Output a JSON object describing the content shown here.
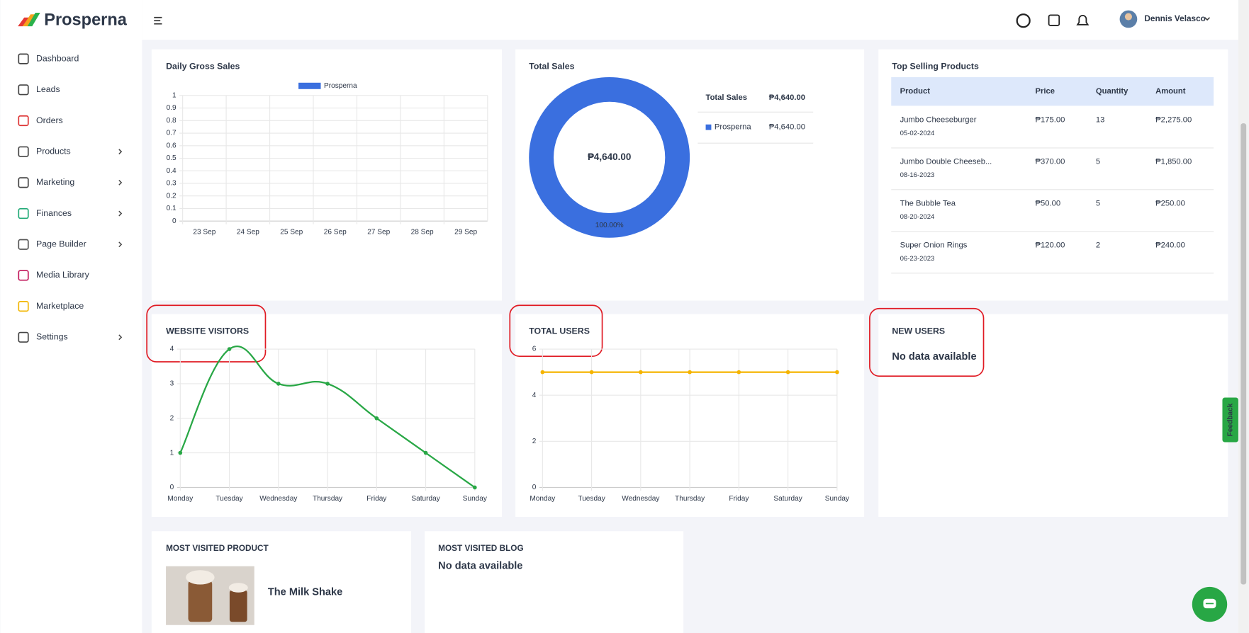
{
  "brand": "Prosperna",
  "sidebar": {
    "items": [
      {
        "label": "Dashboard",
        "has_submenu": false
      },
      {
        "label": "Leads",
        "has_submenu": false
      },
      {
        "label": "Orders",
        "has_submenu": false
      },
      {
        "label": "Products",
        "has_submenu": true
      },
      {
        "label": "Marketing",
        "has_submenu": true
      },
      {
        "label": "Finances",
        "has_submenu": true
      },
      {
        "label": "Page Builder",
        "has_submenu": true
      },
      {
        "label": "Media Library",
        "has_submenu": false
      },
      {
        "label": "Marketplace",
        "has_submenu": false
      },
      {
        "label": "Settings",
        "has_submenu": true
      }
    ]
  },
  "header": {
    "user": "Dennis Velasco"
  },
  "chart_data": [
    {
      "type": "line",
      "title": "Daily Gross Sales",
      "categories": [
        "23 Sep",
        "24 Sep",
        "25 Sep",
        "26 Sep",
        "27 Sep",
        "28 Sep",
        "29 Sep"
      ],
      "series": [
        {
          "name": "Prosperna",
          "color": "#3a6fdf",
          "values": [
            null,
            null,
            null,
            null,
            null,
            null,
            null
          ]
        }
      ],
      "ylim": [
        0,
        1
      ],
      "yticks": [
        0,
        0.1,
        0.2,
        0.3,
        0.4,
        0.5,
        0.6,
        0.7,
        0.8,
        0.9,
        1
      ],
      "grid": true,
      "legend": "top",
      "smooth": false
    },
    {
      "type": "pie",
      "title": "Total Sales",
      "donut": true,
      "categories": [
        "Prosperna"
      ],
      "values": [
        100
      ],
      "value_labels": [
        "100.00%"
      ],
      "colors": [
        "#3a6fdf"
      ],
      "center_label": "₱4,640.00",
      "total_label": "Total Sales",
      "total": "₱4,640.00",
      "legend_amounts": [
        "₱4,640.00"
      ]
    },
    {
      "type": "line",
      "title": "WEBSITE VISITORS",
      "categories": [
        "Monday",
        "Tuesday",
        "Wednesday",
        "Thursday",
        "Friday",
        "Saturday",
        "Sunday"
      ],
      "values": [
        1,
        4,
        3,
        3,
        2,
        1,
        0
      ],
      "color": "#28a745",
      "ylim": [
        0,
        4
      ],
      "yticks": [
        0,
        1,
        2,
        3,
        4
      ],
      "grid": true,
      "smooth": true
    },
    {
      "type": "line",
      "title": "TOTAL USERS",
      "categories": [
        "Monday",
        "Tuesday",
        "Wednesday",
        "Thursday",
        "Friday",
        "Saturday",
        "Sunday"
      ],
      "values": [
        5,
        5,
        5,
        5,
        5,
        5,
        5
      ],
      "color": "#f5b400",
      "ylim": [
        0,
        6
      ],
      "yticks": [
        0,
        2,
        4,
        6
      ],
      "grid": true,
      "smooth": true
    }
  ],
  "top_selling": {
    "title": "Top Selling Products",
    "headers": [
      "Product",
      "Price",
      "Quantity",
      "Amount"
    ],
    "rows": [
      {
        "product": "Jumbo Cheeseburger",
        "date": "05-02-2024",
        "price": "₱175.00",
        "quantity": 13,
        "amount": "₱2,275.00"
      },
      {
        "product": "Jumbo Double Cheeseb...",
        "date": "08-16-2023",
        "price": "₱370.00",
        "quantity": 5,
        "amount": "₱1,850.00"
      },
      {
        "product": "The Bubble Tea",
        "date": "08-20-2024",
        "price": "₱50.00",
        "quantity": 5,
        "amount": "₱250.00"
      },
      {
        "product": "Super Onion Rings",
        "date": "06-23-2023",
        "price": "₱120.00",
        "quantity": 2,
        "amount": "₱240.00"
      }
    ]
  },
  "new_users": {
    "title": "NEW USERS",
    "message": "No data available"
  },
  "most_visited_product": {
    "title": "MOST VISITED PRODUCT",
    "product": "The Milk Shake"
  },
  "most_visited_blog": {
    "title": "MOST VISITED BLOG",
    "message": "No data available"
  },
  "feedback": "Feedback"
}
